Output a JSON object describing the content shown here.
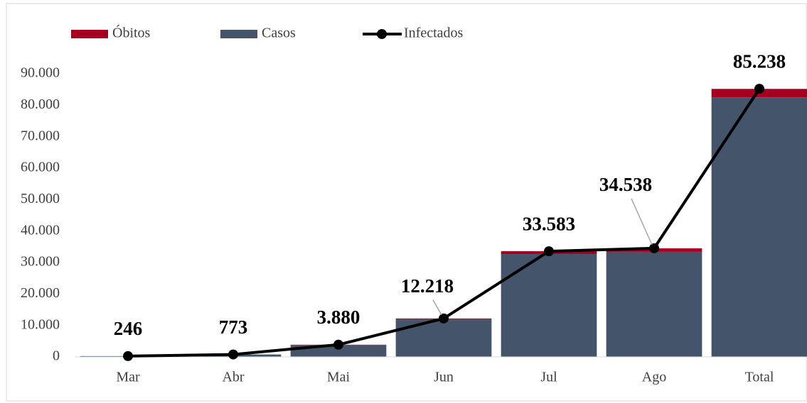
{
  "chart_data": {
    "type": "bar",
    "categories": [
      "Mar",
      "Abr",
      "Mai",
      "Jun",
      "Jul",
      "Ago",
      "Total"
    ],
    "series": [
      {
        "name": "Óbitos",
        "color": "#a50021",
        "stack": true,
        "values": [
          6,
          20,
          100,
          300,
          900,
          1100,
          2700
        ]
      },
      {
        "name": "Casos",
        "color": "#44546a",
        "stack": true,
        "values": [
          240,
          753,
          3780,
          11900,
          32700,
          33400,
          82500
        ]
      },
      {
        "name": "Infectados",
        "type": "line",
        "color": "#000000",
        "values": [
          246,
          773,
          3880,
          12218,
          33583,
          34538,
          85238
        ],
        "value_labels": [
          "246",
          "773",
          "3.880",
          "12.218",
          "33.583",
          "34.538",
          "85.238"
        ]
      }
    ],
    "ylim": [
      0,
      90000
    ],
    "yticks": [
      {
        "value": 0,
        "label": "0"
      },
      {
        "value": 10000,
        "label": "10.000"
      },
      {
        "value": 20000,
        "label": "20.000"
      },
      {
        "value": 30000,
        "label": "30.000"
      },
      {
        "value": 40000,
        "label": "40.000"
      },
      {
        "value": 50000,
        "label": "50.000"
      },
      {
        "value": 60000,
        "label": "60.000"
      },
      {
        "value": 70000,
        "label": "70.000"
      },
      {
        "value": 80000,
        "label": "80.000"
      },
      {
        "value": 90000,
        "label": "90.000"
      }
    ],
    "legend": "top-left"
  }
}
